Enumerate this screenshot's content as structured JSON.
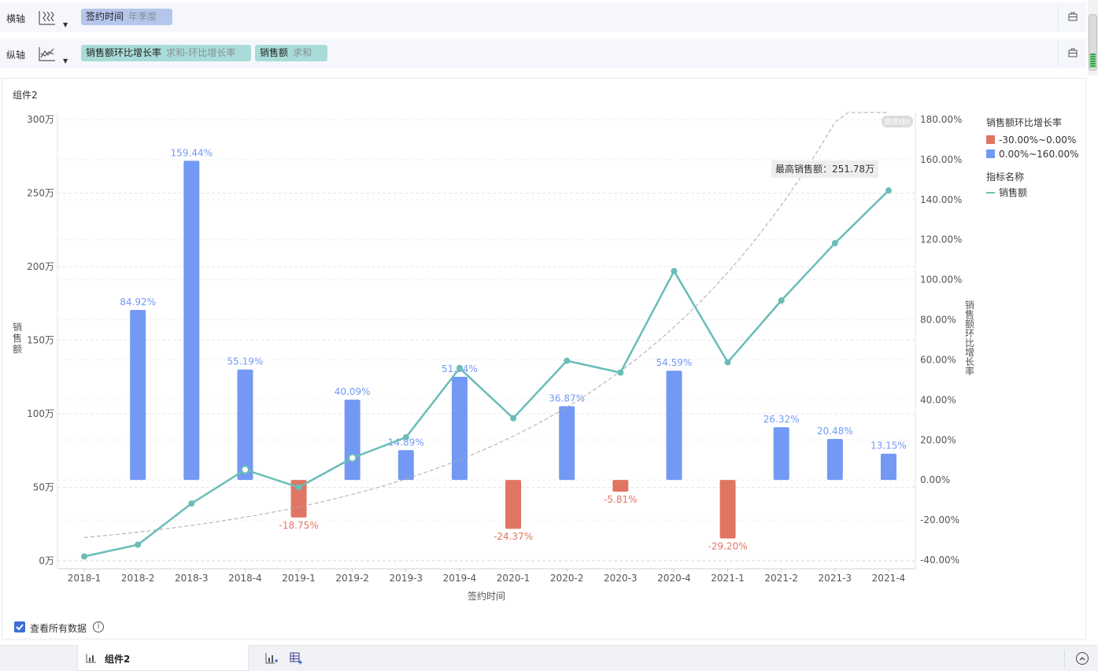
{
  "axes": {
    "x_label": "横轴",
    "y_label": "纵轴",
    "x_field": {
      "name": "签约时间",
      "agg": "年季度"
    },
    "y_fields": [
      {
        "name": "销售额环比增长率",
        "agg": "求和-环比增长率"
      },
      {
        "name": "销售额",
        "agg": "求和"
      }
    ]
  },
  "component_title": "组件2",
  "chart_data": {
    "type": "bar+line",
    "categories": [
      "2018-1",
      "2018-2",
      "2018-3",
      "2018-4",
      "2019-1",
      "2019-2",
      "2019-3",
      "2019-4",
      "2020-1",
      "2020-2",
      "2020-3",
      "2020-4",
      "2021-1",
      "2021-2",
      "2021-3",
      "2021-4"
    ],
    "bar_series": {
      "name": "销售额环比增长率",
      "values": [
        null,
        84.92,
        159.44,
        55.19,
        -18.75,
        40.09,
        14.89,
        51.54,
        -24.37,
        36.87,
        -5.81,
        54.59,
        -29.2,
        26.32,
        20.48,
        13.15
      ]
    },
    "bar_labels": [
      "",
      "84.92%",
      "159.44%",
      "55.19%",
      "-18.75%",
      "40.09%",
      "14.89%",
      "51.54%",
      "-24.37%",
      "36.87%",
      "-5.81%",
      "54.59%",
      "-29.20%",
      "26.32%",
      "20.48%",
      "13.15%"
    ],
    "line_series": {
      "name": "销售额",
      "values": [
        3,
        11,
        39,
        62,
        50,
        70,
        84,
        131,
        97,
        136,
        128,
        197,
        135,
        177,
        216,
        251.78
      ]
    },
    "left_axis": {
      "title": "销售额",
      "ylim": [
        0,
        300
      ],
      "ticks": [
        "0万",
        "50万",
        "100万",
        "150万",
        "200万",
        "250万",
        "300万"
      ],
      "tick_values": [
        0,
        50,
        100,
        150,
        200,
        250,
        300
      ]
    },
    "right_axis": {
      "title": "销售额环比增长率",
      "ylim": [
        -40,
        180
      ],
      "ticks": [
        "-40.00%",
        "-20.00%",
        "0.00%",
        "20.00%",
        "40.00%",
        "60.00%",
        "80.00%",
        "100.00%",
        "120.00%",
        "140.00%",
        "160.00%",
        "180.00%"
      ],
      "tick_values": [
        -40,
        -20,
        0,
        20,
        40,
        60,
        80,
        100,
        120,
        140,
        160,
        180
      ]
    },
    "x_title": "签约时间",
    "trendline": true,
    "trend_tag": "趋势线0",
    "max_annotation": "最高销售额：251.78万",
    "legend": {
      "bar_title": "销售额环比增长率",
      "bar_items": [
        {
          "label": "-30.00%~0.00%",
          "color": "#e07563"
        },
        {
          "label": "0.00%~160.00%",
          "color": "#7399f5"
        }
      ],
      "line_title": "指标名称",
      "line_items": [
        {
          "label": "销售额",
          "color": "#69bdb7"
        }
      ]
    },
    "colors": {
      "positive": "#7399f5",
      "negative": "#e07563",
      "line": "#69bdb7"
    }
  },
  "view_all": {
    "label": "查看所有数据",
    "checked": true,
    "info_icon": "info-icon"
  },
  "bottom": {
    "tab_label": "组件2"
  }
}
